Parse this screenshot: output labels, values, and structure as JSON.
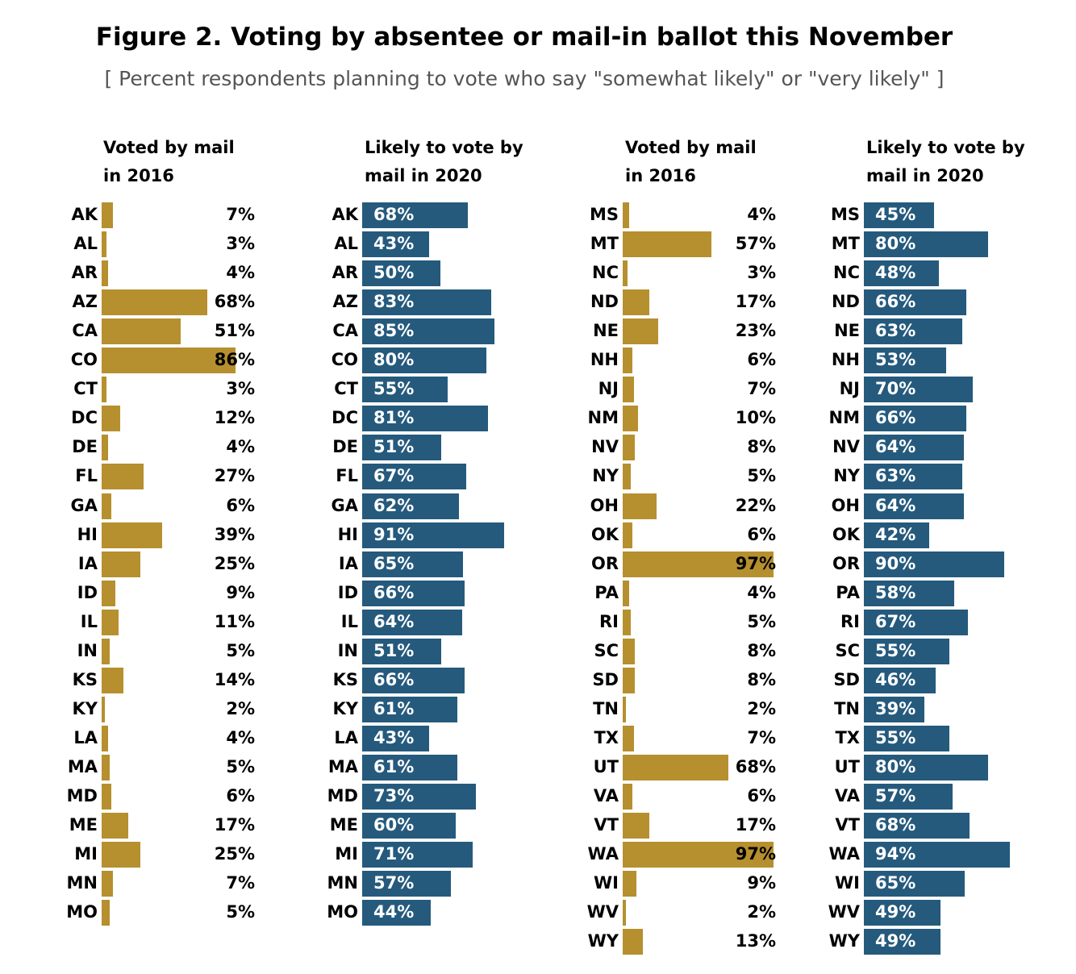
{
  "title": "Figure 2. Voting by absentee or mail-in ballot this November",
  "subtitle": "[ Percent respondents planning to vote who say \"somewhat likely\" or \"very likely\" ]",
  "colors": {
    "voted_2016": "#b68f2e",
    "likely_2020": "#255a7d"
  },
  "chart_data": [
    {
      "type": "bar",
      "title": "Voted by mail in 2016",
      "header_lines": [
        "Voted by mail",
        "in 2016"
      ],
      "categories": [
        "AK",
        "AL",
        "AR",
        "AZ",
        "CA",
        "CO",
        "CT",
        "DC",
        "DE",
        "FL",
        "GA",
        "HI",
        "IA",
        "ID",
        "IL",
        "IN",
        "KS",
        "KY",
        "LA",
        "MA",
        "MD",
        "ME",
        "MI",
        "MN",
        "MO"
      ],
      "values": [
        7,
        3,
        4,
        68,
        51,
        86,
        3,
        12,
        4,
        27,
        6,
        39,
        25,
        9,
        11,
        5,
        14,
        2,
        4,
        5,
        6,
        17,
        25,
        7,
        5
      ],
      "labels": [
        "7%",
        "3%",
        "4%",
        "68%",
        "51%",
        "86%",
        "3%",
        "12%",
        "4%",
        "27%",
        "6%",
        "39%",
        "25%",
        "9%",
        "11%",
        "5%",
        "14%",
        "2%",
        "4%",
        "5%",
        "6%",
        "17%",
        "25%",
        "7%",
        "5%"
      ],
      "xlim": [
        0,
        100
      ]
    },
    {
      "type": "bar",
      "title": "Likely to vote by mail in 2020",
      "header_lines": [
        "Likely to vote by",
        "mail in 2020"
      ],
      "categories": [
        "AK",
        "AL",
        "AR",
        "AZ",
        "CA",
        "CO",
        "CT",
        "DC",
        "DE",
        "FL",
        "GA",
        "HI",
        "IA",
        "ID",
        "IL",
        "IN",
        "KS",
        "KY",
        "LA",
        "MA",
        "MD",
        "ME",
        "MI",
        "MN",
        "MO"
      ],
      "values": [
        68,
        43,
        50,
        83,
        85,
        80,
        55,
        81,
        51,
        67,
        62,
        91,
        65,
        66,
        64,
        51,
        66,
        61,
        43,
        61,
        73,
        60,
        71,
        57,
        44
      ],
      "labels": [
        "68%",
        "43%",
        "50%",
        "83%",
        "85%",
        "80%",
        "55%",
        "81%",
        "51%",
        "67%",
        "62%",
        "91%",
        "65%",
        "66%",
        "64%",
        "51%",
        "66%",
        "61%",
        "43%",
        "61%",
        "73%",
        "60%",
        "71%",
        "57%",
        "44%"
      ],
      "xlim": [
        0,
        100
      ]
    },
    {
      "type": "bar",
      "title": "Voted by mail in 2016",
      "header_lines": [
        "Voted by mail",
        "in 2016"
      ],
      "categories": [
        "MS",
        "MT",
        "NC",
        "ND",
        "NE",
        "NH",
        "NJ",
        "NM",
        "NV",
        "NY",
        "OH",
        "OK",
        "OR",
        "PA",
        "RI",
        "SC",
        "SD",
        "TN",
        "TX",
        "UT",
        "VA",
        "VT",
        "WA",
        "WI",
        "WV",
        "WY"
      ],
      "values": [
        4,
        57,
        3,
        17,
        23,
        6,
        7,
        10,
        8,
        5,
        22,
        6,
        97,
        4,
        5,
        8,
        8,
        2,
        7,
        68,
        6,
        17,
        97,
        9,
        2,
        13
      ],
      "labels": [
        "4%",
        "57%",
        "3%",
        "17%",
        "23%",
        "6%",
        "7%",
        "10%",
        "8%",
        "5%",
        "22%",
        "6%",
        "97%",
        "4%",
        "5%",
        "8%",
        "8%",
        "2%",
        "7%",
        "68%",
        "6%",
        "17%",
        "97%",
        "9%",
        "2%",
        "13%"
      ],
      "xlim": [
        0,
        100
      ]
    },
    {
      "type": "bar",
      "title": "Likely to vote by mail in 2020",
      "header_lines": [
        "Likely to vote by",
        "mail in 2020"
      ],
      "categories": [
        "MS",
        "MT",
        "NC",
        "ND",
        "NE",
        "NH",
        "NJ",
        "NM",
        "NV",
        "NY",
        "OH",
        "OK",
        "OR",
        "PA",
        "RI",
        "SC",
        "SD",
        "TN",
        "TX",
        "UT",
        "VA",
        "VT",
        "WA",
        "WI",
        "WV",
        "WY"
      ],
      "values": [
        45,
        80,
        48,
        66,
        63,
        53,
        70,
        66,
        64,
        63,
        64,
        42,
        90,
        58,
        67,
        55,
        46,
        39,
        55,
        80,
        57,
        68,
        94,
        65,
        49,
        49
      ],
      "labels": [
        "45%",
        "80%",
        "48%",
        "66%",
        "63%",
        "53%",
        "70%",
        "66%",
        "64%",
        "63%",
        "64%",
        "42%",
        "90%",
        "58%",
        "67%",
        "55%",
        "46%",
        "39%",
        "55%",
        "80%",
        "57%",
        "68%",
        "94%",
        "65%",
        "49%",
        "49%"
      ],
      "xlim": [
        0,
        100
      ]
    }
  ]
}
